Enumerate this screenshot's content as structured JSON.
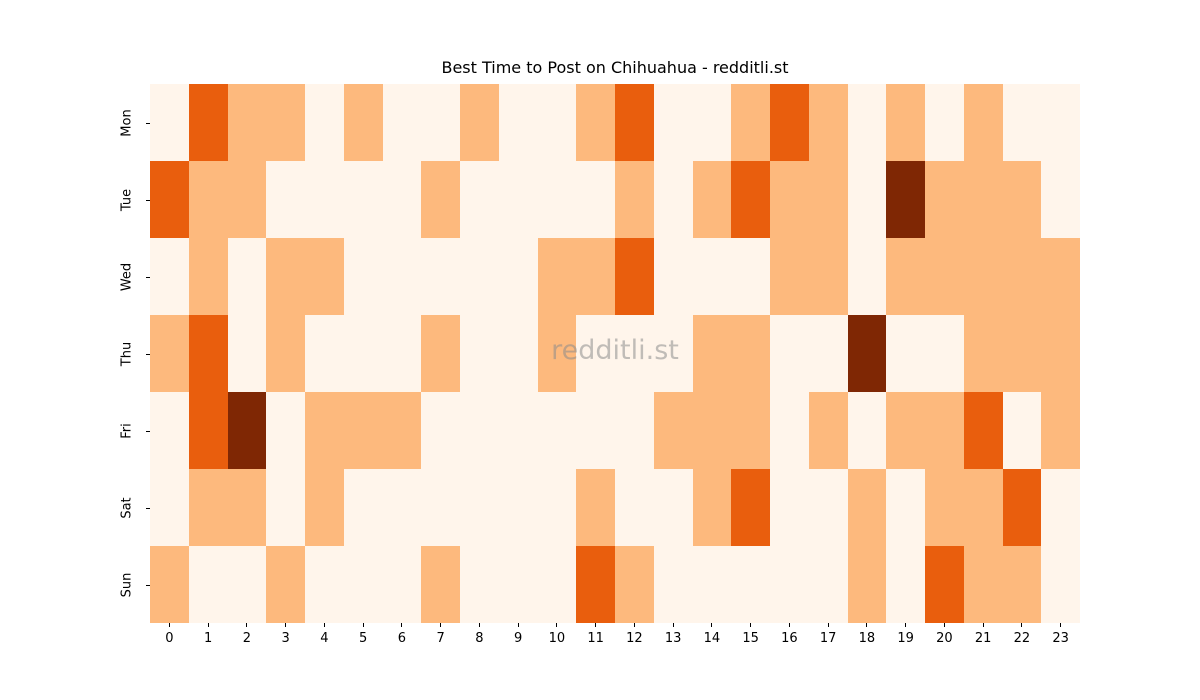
{
  "chart_data": {
    "type": "heatmap",
    "title": "Best Time to Post on Chihuahua - redditli.st",
    "xlabel": "",
    "ylabel": "",
    "x": [
      "0",
      "1",
      "2",
      "3",
      "4",
      "5",
      "6",
      "7",
      "8",
      "9",
      "10",
      "11",
      "12",
      "13",
      "14",
      "15",
      "16",
      "17",
      "18",
      "19",
      "20",
      "21",
      "22",
      "23"
    ],
    "y": [
      "Mon",
      "Tue",
      "Wed",
      "Thu",
      "Fri",
      "Sat",
      "Sun"
    ],
    "value_scale": "relative intensity levels 0-3 (no colorbar shown)",
    "colormap": [
      "#fff5eb",
      "#fdb97d",
      "#e95e0d",
      "#7f2704"
    ],
    "values": [
      [
        0,
        2,
        1,
        1,
        0,
        1,
        0,
        0,
        1,
        0,
        0,
        1,
        2,
        0,
        0,
        1,
        2,
        1,
        0,
        1,
        0,
        1,
        0,
        0
      ],
      [
        2,
        1,
        1,
        0,
        0,
        0,
        0,
        1,
        0,
        0,
        0,
        0,
        1,
        0,
        1,
        2,
        1,
        1,
        0,
        3,
        1,
        1,
        1,
        0
      ],
      [
        0,
        1,
        0,
        1,
        1,
        0,
        0,
        0,
        0,
        0,
        1,
        1,
        2,
        0,
        0,
        0,
        1,
        1,
        0,
        1,
        1,
        1,
        1,
        1
      ],
      [
        1,
        2,
        0,
        1,
        0,
        0,
        0,
        1,
        0,
        0,
        1,
        0,
        0,
        0,
        1,
        1,
        0,
        0,
        3,
        0,
        0,
        1,
        1,
        1
      ],
      [
        0,
        2,
        3,
        0,
        1,
        1,
        1,
        0,
        0,
        0,
        0,
        0,
        0,
        1,
        1,
        1,
        0,
        1,
        0,
        1,
        1,
        2,
        0,
        1
      ],
      [
        0,
        1,
        1,
        0,
        1,
        0,
        0,
        0,
        0,
        0,
        0,
        1,
        0,
        0,
        1,
        2,
        0,
        0,
        1,
        0,
        1,
        1,
        2,
        0
      ],
      [
        1,
        0,
        0,
        1,
        0,
        0,
        0,
        1,
        0,
        0,
        0,
        2,
        1,
        0,
        0,
        0,
        0,
        0,
        1,
        0,
        2,
        1,
        1,
        0
      ]
    ],
    "legend": "none",
    "grid": false,
    "annotations": [
      "redditli.st"
    ]
  },
  "watermark": "redditli.st"
}
